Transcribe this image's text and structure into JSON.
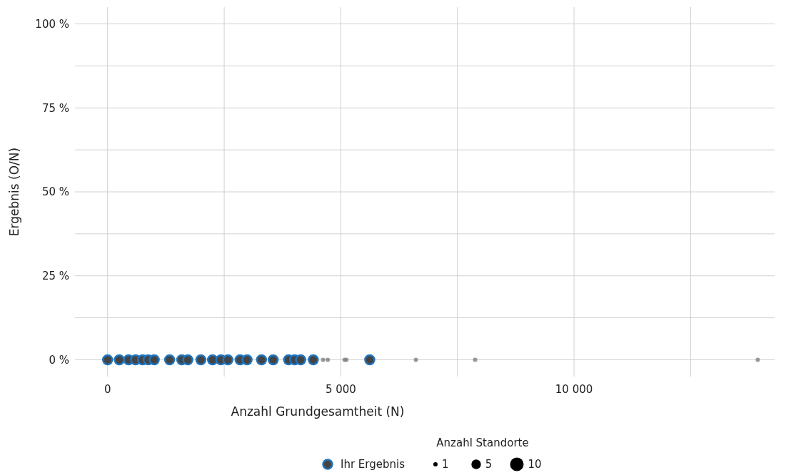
{
  "chart_data": {
    "type": "bubble",
    "xlabel": "Anzahl Grundgesamtheit (N)",
    "ylabel": "Ergebnis (O/N)",
    "legend_title": "Anzahl Standorte",
    "legend": "bottom",
    "grid": true,
    "marker": "circle",
    "xlim": [
      -700,
      14300
    ],
    "ylim": [
      -5,
      105
    ],
    "xticks": [
      {
        "value": 0,
        "label": "0"
      },
      {
        "value": 2500,
        "label": null
      },
      {
        "value": 5000,
        "label": "5 000"
      },
      {
        "value": 7500,
        "label": null
      },
      {
        "value": 10000,
        "label": "10 000"
      },
      {
        "value": 12500,
        "label": null
      }
    ],
    "yticks": [
      {
        "value": 0,
        "label": "0 %"
      },
      {
        "value": 12.5,
        "label": null
      },
      {
        "value": 25,
        "label": "25 %"
      },
      {
        "value": 37.5,
        "label": null
      },
      {
        "value": 50,
        "label": "50 %"
      },
      {
        "value": 62.5,
        "label": null
      },
      {
        "value": 75,
        "label": "75 %"
      },
      {
        "value": 87.5,
        "label": null
      },
      {
        "value": 100,
        "label": "100 %"
      }
    ],
    "size_legend": [
      1,
      5,
      10
    ],
    "series": [
      {
        "color": "#808080",
        "x": [
          4620,
          4720,
          5080,
          5120,
          6610,
          7880,
          13940
        ],
        "values": [
          0,
          0,
          0,
          0,
          0,
          0,
          0
        ],
        "sizes": [
          1,
          1,
          1,
          1,
          1,
          1,
          1
        ]
      },
      {
        "type": "scatter",
        "name": "Ihr Ergebnis",
        "color": "#1f74bc",
        "x": [
          0,
          250,
          450,
          600,
          750,
          870,
          1000,
          1330,
          1590,
          1720,
          2000,
          2250,
          2430,
          2580,
          2840,
          2990,
          3300,
          3550,
          3880,
          4010,
          4140,
          4410,
          5620
        ],
        "values": [
          0,
          0,
          0,
          0,
          0,
          0,
          0,
          0,
          0,
          0,
          0,
          0,
          0,
          0,
          0,
          0,
          0,
          0,
          0,
          0,
          0,
          0,
          0
        ]
      }
    ]
  }
}
